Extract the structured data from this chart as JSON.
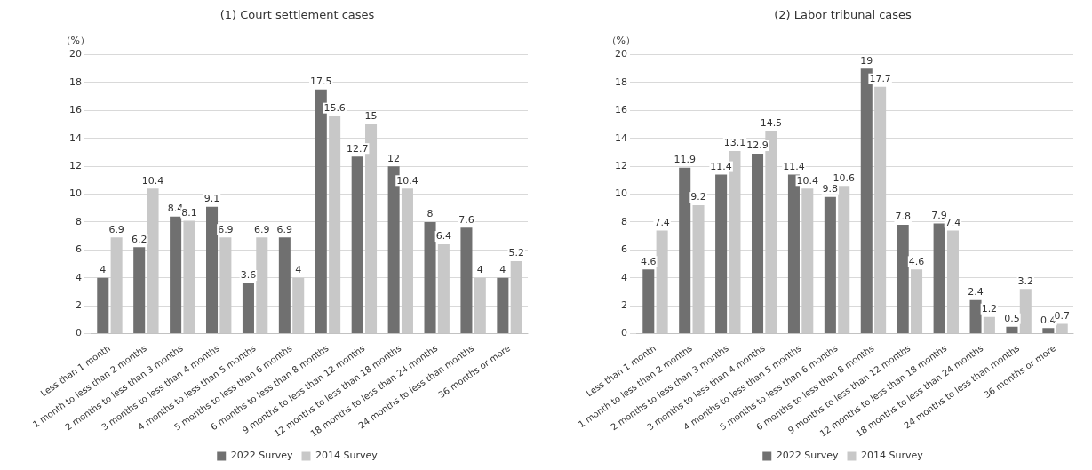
{
  "chart_data": [
    {
      "type": "bar",
      "title": "(1) Court settlement cases",
      "ylabel": "（%）",
      "categories": [
        "Less than 1 month",
        "1 month to less than 2 months",
        "2 months to less than 3 months",
        "3 months to less than 4 months",
        "4 months to less than 5 months",
        "5 months to less than 6 months",
        "6 months to less than 8 months",
        "9 months to less than 12 months",
        "12 months to less than 18 months",
        "18 months to less than 24 months",
        "24 months to less than months",
        "36 months or more"
      ],
      "series": [
        {
          "name": "2022 Survey",
          "color": "#707070",
          "values": [
            4,
            6.2,
            8.4,
            9.1,
            3.6,
            6.9,
            17.5,
            12.7,
            12,
            8,
            7.6,
            4
          ]
        },
        {
          "name": "2014 Survey",
          "color": "#c8c8c8",
          "values": [
            6.9,
            10.4,
            8.1,
            6.9,
            6.9,
            4,
            15.6,
            15,
            10.4,
            6.4,
            4,
            5.2
          ]
        }
      ],
      "ylim": [
        0,
        20
      ],
      "yticks": [
        0,
        2,
        4,
        6,
        8,
        10,
        12,
        14,
        16,
        18,
        20
      ],
      "grid": "y",
      "legend": "bottom",
      "data_labels": true
    },
    {
      "type": "bar",
      "title": "(2) Labor tribunal cases",
      "ylabel": "（%）",
      "categories": [
        "Less than 1 month",
        "1 month to less than 2 months",
        "2 months to less than 3 months",
        "3 months to less than 4 months",
        "4 months to less than 5 months",
        "5 months to less than 6 months",
        "6 months to less than 8 months",
        "9 months to less than 12 months",
        "12 months to less than 18 months",
        "18 months to less than 24 months",
        "24 months to less than months",
        "36 months or more"
      ],
      "series": [
        {
          "name": "2022 Survey",
          "color": "#707070",
          "values": [
            4.6,
            11.9,
            11.4,
            12.9,
            11.4,
            9.8,
            19,
            7.8,
            7.9,
            2.4,
            0.5,
            0.4
          ]
        },
        {
          "name": "2014 Survey",
          "color": "#c8c8c8",
          "values": [
            7.4,
            9.2,
            13.1,
            14.5,
            10.4,
            10.6,
            17.7,
            4.6,
            7.4,
            1.2,
            3.2,
            0.7
          ]
        }
      ],
      "ylim": [
        0,
        20
      ],
      "yticks": [
        0,
        2,
        4,
        6,
        8,
        10,
        12,
        14,
        16,
        18,
        20
      ],
      "grid": "y",
      "legend": "bottom",
      "data_labels": true
    }
  ]
}
